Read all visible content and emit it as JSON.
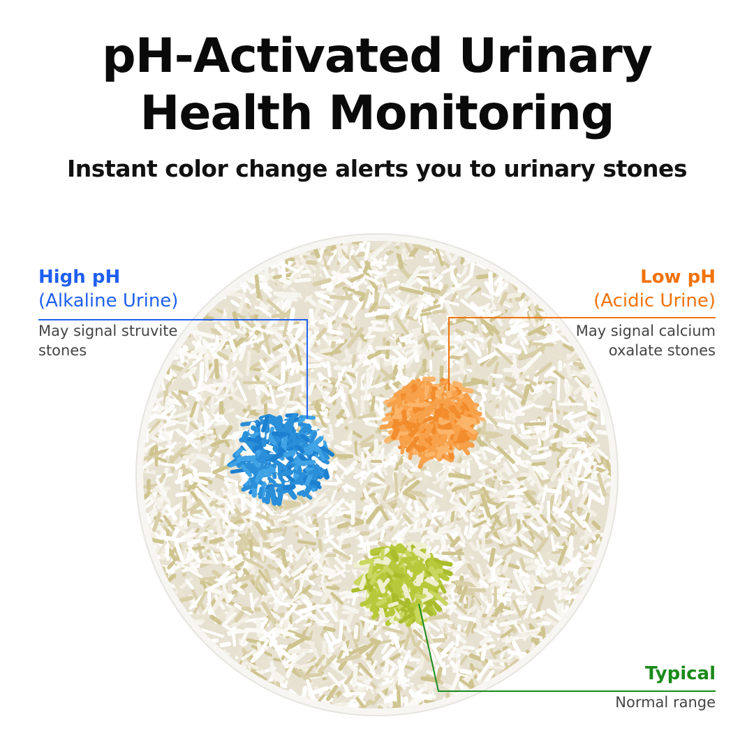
{
  "title_line1": "pH-Activated Urinary",
  "title_line2": "Health Monitoring",
  "subtitle": "Instant color change alerts you to urinary stones",
  "callouts": {
    "high": {
      "heading": "High pH",
      "subheading": "(Alkaline Urine)",
      "description_1": "May signal struvite",
      "description_2": "stones",
      "color": "#1f5ff0"
    },
    "low": {
      "heading": "Low pH",
      "subheading": "(Acidic Urine)",
      "description_1": "May signal calcium",
      "description_2": "oxalate stones",
      "color": "#f2720c"
    },
    "typical": {
      "heading": "Typical",
      "description": "Normal range",
      "color": "#1a8a1a"
    }
  },
  "colors": {
    "litter": "#eeeae0",
    "blue_clump": "#2a8fd8",
    "orange_clump": "#f7a14a",
    "green_clump": "#b7c93a"
  }
}
